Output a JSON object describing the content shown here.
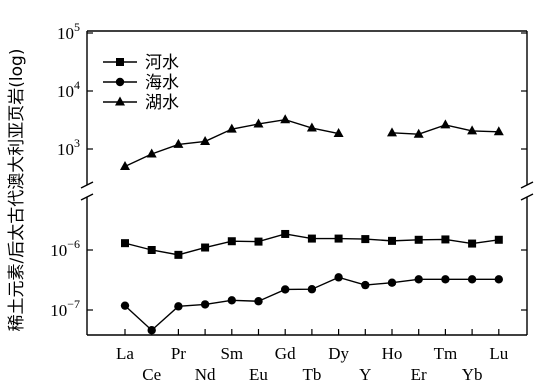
{
  "chart_data": {
    "type": "line",
    "ylabel": "稀土元素/后太古代澳大利亚页岩(log)",
    "y_scale": "log, broken axis",
    "grid": false,
    "legend_position": "top-left",
    "categories": [
      "La",
      "Ce",
      "Pr",
      "Nd",
      "Sm",
      "Eu",
      "Gd",
      "Tb",
      "Dy",
      "Y",
      "Ho",
      "Er",
      "Tm",
      "Yb",
      "Lu"
    ],
    "upper_yticks": [
      {
        "value": 1000,
        "base": "10",
        "exp": "3"
      },
      {
        "value": 10000,
        "base": "10",
        "exp": "4"
      },
      {
        "value": 100000,
        "base": "10",
        "exp": "5"
      }
    ],
    "lower_yticks": [
      {
        "value": 1e-07,
        "base": "10",
        "exp": "−7"
      },
      {
        "value": 1e-06,
        "base": "10",
        "exp": "−6"
      }
    ],
    "series": [
      {
        "name": "河水",
        "marker": "square",
        "values": [
          1.3e-06,
          1e-06,
          8.3e-07,
          1.1e-06,
          1.4e-06,
          1.38e-06,
          1.85e-06,
          1.55e-06,
          1.55e-06,
          1.52e-06,
          1.42e-06,
          1.48e-06,
          1.5e-06,
          1.28e-06,
          1.48e-06
        ]
      },
      {
        "name": "海水",
        "marker": "circle",
        "values": [
          1.18e-07,
          4.6e-08,
          1.15e-07,
          1.24e-07,
          1.45e-07,
          1.4e-07,
          2.2e-07,
          2.22e-07,
          3.5e-07,
          2.6e-07,
          2.85e-07,
          3.25e-07,
          3.25e-07,
          3.25e-07,
          3.25e-07
        ]
      },
      {
        "name": "湖水",
        "marker": "triangle",
        "values": [
          500,
          820,
          1200,
          1350,
          2200,
          2700,
          3200,
          2300,
          1850,
          null,
          1900,
          1800,
          2600,
          2050,
          1980
        ]
      }
    ]
  }
}
